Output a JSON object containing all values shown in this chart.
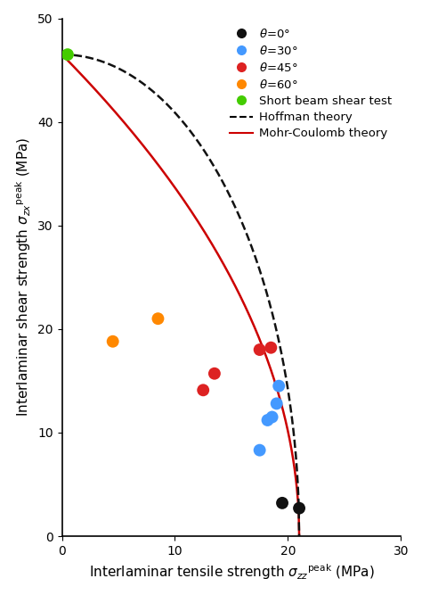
{
  "xlim": [
    0,
    30
  ],
  "ylim": [
    0,
    50
  ],
  "xticks": [
    0,
    10,
    20,
    30
  ],
  "yticks": [
    0,
    10,
    20,
    30,
    40,
    50
  ],
  "S_t": 21.0,
  "S_s": 46.5,
  "data_theta0": {
    "x": [
      19.5,
      21.0
    ],
    "y": [
      3.2,
      2.7
    ],
    "color": "#111111"
  },
  "data_theta30": {
    "x": [
      17.5,
      18.2,
      18.6,
      19.0,
      19.2
    ],
    "y": [
      8.3,
      11.2,
      11.5,
      12.8,
      14.5
    ],
    "color": "#4499ff"
  },
  "data_theta45": {
    "x": [
      12.5,
      13.5,
      17.5,
      18.5
    ],
    "y": [
      14.1,
      15.7,
      18.0,
      18.2
    ],
    "color": "#dd2222"
  },
  "data_theta60": {
    "x": [
      4.5,
      8.5
    ],
    "y": [
      18.8,
      21.0
    ],
    "color": "#ff8800"
  },
  "data_sbs": {
    "x": [
      0.5
    ],
    "y": [
      46.5
    ],
    "color": "#44cc00"
  },
  "hoffman_color": "#111111",
  "mohr_color": "#cc0000",
  "marker_size": 10,
  "font_size": 11,
  "bg_color": "#ffffff"
}
